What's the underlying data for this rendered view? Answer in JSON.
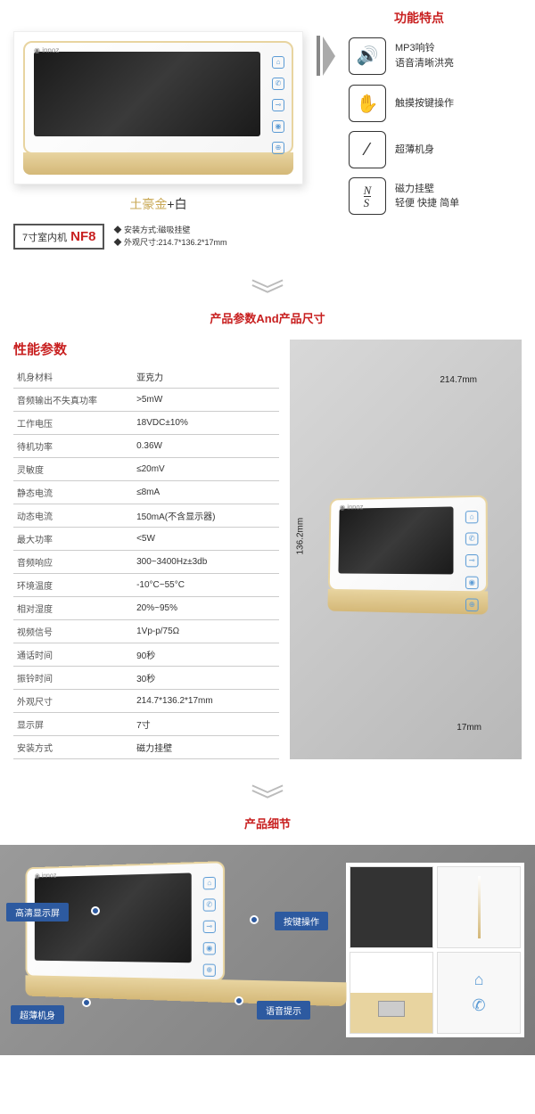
{
  "section1": {
    "color_label_gold": "土豪金",
    "color_label_plus": "+",
    "color_label_white": "白",
    "model_prefix": "7寸室内机",
    "model_code": "NF8",
    "note1": "◆ 安装方式:磁吸挂壁",
    "note2": "◆ 外观尺寸:214.7*136.2*17mm",
    "features_title": "功能特点",
    "features": [
      {
        "icon": "🔊",
        "line1": "MP3响铃",
        "line2": "语音清晰洪亮"
      },
      {
        "icon": "✋",
        "line1": "触摸按键操作",
        "line2": ""
      },
      {
        "icon": "⁄",
        "line1": "超薄机身",
        "line2": ""
      },
      {
        "icon": "N/S",
        "line1": "磁力挂壁",
        "line2": "轻便 快捷 简单"
      }
    ]
  },
  "section2_title": "产品参数And产品尺寸",
  "spec_title": "性能参数",
  "specs": [
    {
      "k": "机身材料",
      "v": "亚克力"
    },
    {
      "k": "音频输出不失真功率",
      "v": ">5mW"
    },
    {
      "k": "工作电压",
      "v": "18VDC±10%"
    },
    {
      "k": "待机功率",
      "v": "0.36W"
    },
    {
      "k": "灵敏度",
      "v": "≤20mV"
    },
    {
      "k": "静态电流",
      "v": "≤8mA"
    },
    {
      "k": "动态电流",
      "v": "150mA(不含显示器)"
    },
    {
      "k": "最大功率",
      "v": "<5W"
    },
    {
      "k": "音频响应",
      "v": "300~3400Hz±3db"
    },
    {
      "k": "环境温度",
      "v": "-10°C~55°C"
    },
    {
      "k": "相对湿度",
      "v": "20%~95%"
    },
    {
      "k": "视频信号",
      "v": "1Vp-p/75Ω"
    },
    {
      "k": "通话时间",
      "v": "90秒"
    },
    {
      "k": "振铃时间",
      "v": "30秒"
    },
    {
      "k": "外观尺寸",
      "v": "214.7*136.2*17mm"
    },
    {
      "k": "显示屏",
      "v": "7寸"
    },
    {
      "k": "安装方式",
      "v": "磁力挂壁"
    }
  ],
  "dims": {
    "w": "214.7mm",
    "h": "136.2mm",
    "d": "17mm"
  },
  "section3_title": "产品细节",
  "callouts": {
    "c1": "高清显示屏",
    "c2": "超薄机身",
    "c3": "按键操作",
    "c4": "语音提示"
  },
  "colors": {
    "accent": "#c82020",
    "gold": "#c9a855",
    "blue": "#2d5aa0"
  }
}
